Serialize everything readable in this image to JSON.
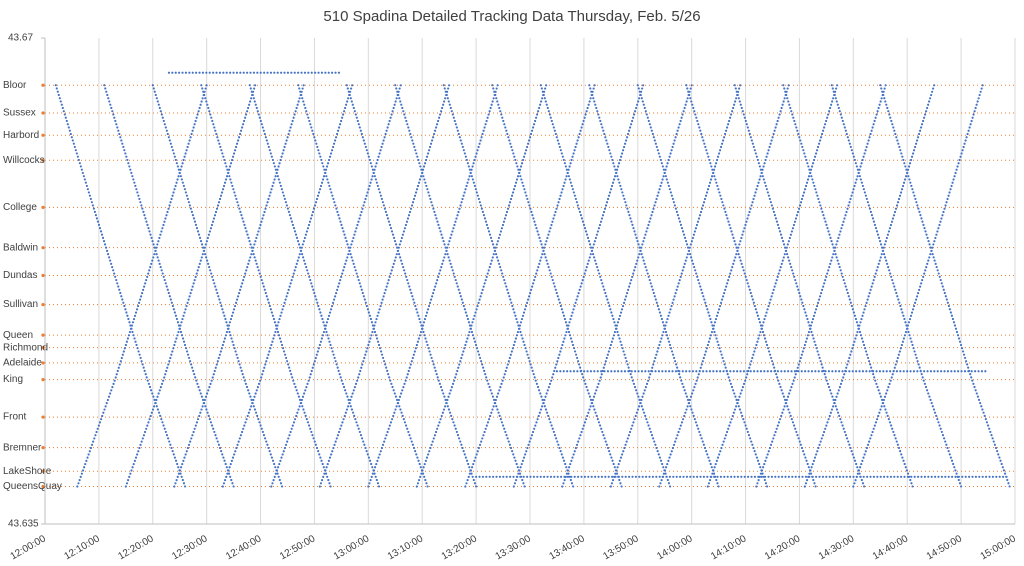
{
  "chart_data": {
    "type": "line",
    "title": "510 Spadina Detailed Tracking Data Thursday, Feb. 5/26",
    "color": "#4472c4",
    "stop_color": "#ed7d31",
    "grid": true,
    "xlim": [
      720,
      900
    ],
    "xticks": [
      {
        "value": 720,
        "label": "12:00:00"
      },
      {
        "value": 730,
        "label": "12:10:00"
      },
      {
        "value": 740,
        "label": "12:20:00"
      },
      {
        "value": 750,
        "label": "12:30:00"
      },
      {
        "value": 760,
        "label": "12:40:00"
      },
      {
        "value": 770,
        "label": "12:50:00"
      },
      {
        "value": 780,
        "label": "13:00:00"
      },
      {
        "value": 790,
        "label": "13:10:00"
      },
      {
        "value": 800,
        "label": "13:20:00"
      },
      {
        "value": 810,
        "label": "13:30:00"
      },
      {
        "value": 820,
        "label": "13:40:00"
      },
      {
        "value": 830,
        "label": "13:50:00"
      },
      {
        "value": 840,
        "label": "14:00:00"
      },
      {
        "value": 850,
        "label": "14:10:00"
      },
      {
        "value": 860,
        "label": "14:20:00"
      },
      {
        "value": 870,
        "label": "14:30:00"
      },
      {
        "value": 880,
        "label": "14:40:00"
      },
      {
        "value": 890,
        "label": "14:50:00"
      },
      {
        "value": 900,
        "label": "15:00:00"
      }
    ],
    "ylim": [
      43.635,
      43.67
    ],
    "yticks": [
      43.635,
      43.67
    ],
    "stops": [
      {
        "value": 43.6666,
        "label": "Bloor"
      },
      {
        "value": 43.6646,
        "label": "Sussex"
      },
      {
        "value": 43.663,
        "label": "Harbord"
      },
      {
        "value": 43.6612,
        "label": "Willcocks"
      },
      {
        "value": 43.6578,
        "label": "College"
      },
      {
        "value": 43.6549,
        "label": "Baldwin"
      },
      {
        "value": 43.6529,
        "label": "Dundas"
      },
      {
        "value": 43.6508,
        "label": "Sullivan"
      },
      {
        "value": 43.6486,
        "label": "Queen"
      },
      {
        "value": 43.6477,
        "label": "Richmond"
      },
      {
        "value": 43.6466,
        "label": "Adelaide"
      },
      {
        "value": 43.6454,
        "label": "King"
      },
      {
        "value": 43.6427,
        "label": "Front"
      },
      {
        "value": 43.6405,
        "label": "Bremner"
      },
      {
        "value": 43.6388,
        "label": "LakeShore"
      },
      {
        "value": 43.6377,
        "label": "QueensQuay"
      }
    ],
    "x": [
      722,
      729,
      739,
      746,
      null,
      731,
      738,
      748,
      755,
      null,
      740,
      747,
      757,
      764,
      null,
      749,
      756,
      766,
      773,
      null,
      758,
      765,
      775,
      782,
      null,
      767,
      774,
      784,
      791,
      null,
      776,
      783,
      793,
      800,
      null,
      785,
      792,
      802,
      809,
      null,
      794,
      801,
      811,
      818,
      null,
      803,
      810,
      820,
      827,
      null,
      812,
      819,
      829,
      836,
      null,
      821,
      828,
      838,
      845,
      null,
      830,
      837,
      847,
      854,
      null,
      839,
      846,
      856,
      863,
      null,
      848,
      855,
      865,
      872,
      null,
      857,
      864,
      874,
      881,
      null,
      866,
      873,
      883,
      890,
      null,
      875,
      882,
      892,
      899,
      null,
      726,
      733,
      743,
      750,
      null,
      735,
      742,
      752,
      759,
      null,
      744,
      751,
      761,
      768,
      null,
      753,
      760,
      770,
      777,
      null,
      762,
      769,
      779,
      786,
      null,
      771,
      778,
      788,
      795,
      null,
      780,
      787,
      797,
      804,
      null,
      789,
      796,
      806,
      813,
      null,
      798,
      805,
      815,
      822,
      null,
      807,
      814,
      824,
      831,
      null,
      816,
      823,
      833,
      840,
      null,
      825,
      832,
      842,
      849,
      null,
      834,
      841,
      851,
      858,
      null,
      843,
      850,
      860,
      867,
      null,
      852,
      859,
      869,
      876,
      null,
      861,
      868,
      878,
      885,
      null,
      870,
      877,
      887,
      894,
      null,
      743,
      775,
      null,
      800,
      899,
      null,
      815,
      895
    ],
    "values": [
      43.6666,
      43.6578,
      43.6454,
      43.6377,
      null,
      43.6666,
      43.6578,
      43.6454,
      43.6377,
      null,
      43.6666,
      43.6578,
      43.6454,
      43.6377,
      null,
      43.6666,
      43.6578,
      43.6454,
      43.6377,
      null,
      43.6666,
      43.6578,
      43.6454,
      43.6377,
      null,
      43.6666,
      43.6578,
      43.6454,
      43.6377,
      null,
      43.6666,
      43.6578,
      43.6454,
      43.6377,
      null,
      43.6666,
      43.6578,
      43.6454,
      43.6377,
      null,
      43.6666,
      43.6578,
      43.6454,
      43.6377,
      null,
      43.6666,
      43.6578,
      43.6454,
      43.6377,
      null,
      43.6666,
      43.6578,
      43.6454,
      43.6377,
      null,
      43.6666,
      43.6578,
      43.6454,
      43.6377,
      null,
      43.6666,
      43.6578,
      43.6454,
      43.6377,
      null,
      43.6666,
      43.6578,
      43.6454,
      43.6377,
      null,
      43.6666,
      43.6578,
      43.6454,
      43.6377,
      null,
      43.6666,
      43.6578,
      43.6454,
      43.6377,
      null,
      43.6666,
      43.6578,
      43.6454,
      43.6377,
      null,
      43.6666,
      43.6578,
      43.6454,
      43.6377,
      null,
      43.6377,
      43.6454,
      43.6578,
      43.6666,
      null,
      43.6377,
      43.6454,
      43.6578,
      43.6666,
      null,
      43.6377,
      43.6454,
      43.6578,
      43.6666,
      null,
      43.6377,
      43.6454,
      43.6578,
      43.6666,
      null,
      43.6377,
      43.6454,
      43.6578,
      43.6666,
      null,
      43.6377,
      43.6454,
      43.6578,
      43.6666,
      null,
      43.6377,
      43.6454,
      43.6578,
      43.6666,
      null,
      43.6377,
      43.6454,
      43.6578,
      43.6666,
      null,
      43.6377,
      43.6454,
      43.6578,
      43.6666,
      null,
      43.6377,
      43.6454,
      43.6578,
      43.6666,
      null,
      43.6377,
      43.6454,
      43.6578,
      43.6666,
      null,
      43.6377,
      43.6454,
      43.6578,
      43.6666,
      null,
      43.6377,
      43.6454,
      43.6578,
      43.6666,
      null,
      43.6377,
      43.6454,
      43.6578,
      43.6666,
      null,
      43.6377,
      43.6454,
      43.6578,
      43.6666,
      null,
      43.6377,
      43.6454,
      43.6578,
      43.6666,
      null,
      43.6377,
      43.6454,
      43.6578,
      43.6666,
      null,
      43.6675,
      43.6675,
      null,
      43.6384,
      43.6384,
      null,
      43.646,
      43.646
    ]
  }
}
